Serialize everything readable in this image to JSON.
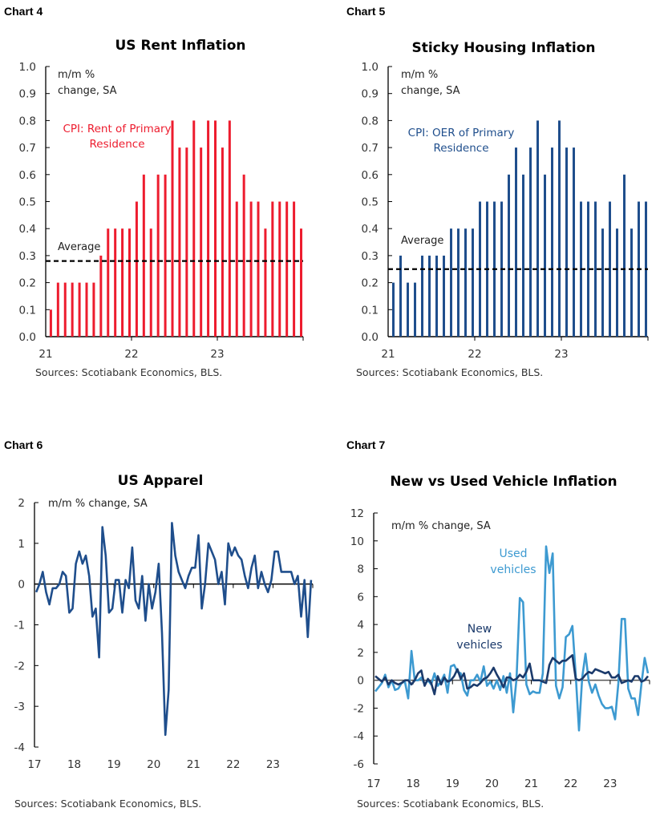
{
  "chart_data": [
    {
      "id": "chart4",
      "label": "Chart 4",
      "type": "bar",
      "title": "US Rent Inflation",
      "unit_note": "m/m %\nchange, SA",
      "series": [
        {
          "name": "CPI: Rent of Primary\nResidence",
          "color": "#ed1c2e",
          "values": [
            0.1,
            0.2,
            0.2,
            0.2,
            0.2,
            0.2,
            0.2,
            0.3,
            0.4,
            0.4,
            0.4,
            0.4,
            0.5,
            0.6,
            0.4,
            0.6,
            0.6,
            0.8,
            0.7,
            0.7,
            0.8,
            0.7,
            0.8,
            0.8,
            0.7,
            0.8,
            0.5,
            0.6,
            0.5,
            0.5,
            0.4,
            0.5,
            0.5,
            0.5,
            0.5,
            0.4
          ]
        }
      ],
      "x_start": "2021-01",
      "x_end": "2023-12",
      "average": {
        "label": "Average",
        "value": 0.28
      },
      "ylim": [
        0,
        1.0
      ],
      "yticks": [
        "0.0",
        "0.1",
        "0.2",
        "0.3",
        "0.4",
        "0.5",
        "0.6",
        "0.7",
        "0.8",
        "0.9",
        "1.0"
      ],
      "xticks": [
        "21",
        "22",
        "23"
      ],
      "source": "Sources: Scotiabank Economics, BLS."
    },
    {
      "id": "chart5",
      "label": "Chart 5",
      "type": "bar",
      "title": "Sticky Housing Inflation",
      "unit_note": "m/m %\nchange, SA",
      "series": [
        {
          "name": "CPI: OER of Primary\nResidence",
          "color": "#1f4e8c",
          "values": [
            0.2,
            0.3,
            0.2,
            0.2,
            0.3,
            0.3,
            0.3,
            0.3,
            0.4,
            0.4,
            0.4,
            0.4,
            0.5,
            0.5,
            0.5,
            0.5,
            0.6,
            0.7,
            0.6,
            0.7,
            0.8,
            0.6,
            0.7,
            0.8,
            0.7,
            0.7,
            0.5,
            0.5,
            0.5,
            0.4,
            0.5,
            0.4,
            0.6,
            0.4,
            0.5,
            0.5
          ]
        }
      ],
      "x_start": "2021-01",
      "x_end": "2023-12",
      "average": {
        "label": "Average",
        "value": 0.25
      },
      "ylim": [
        0,
        1.0
      ],
      "yticks": [
        "0.0",
        "0.1",
        "0.2",
        "0.3",
        "0.4",
        "0.5",
        "0.6",
        "0.7",
        "0.8",
        "0.9",
        "1.0"
      ],
      "xticks": [
        "21",
        "22",
        "23"
      ],
      "source": "Sources: Scotiabank Economics, BLS."
    },
    {
      "id": "chart6",
      "label": "Chart 6",
      "type": "line",
      "title": "US Apparel",
      "unit_note": "m/m % change, SA",
      "series": [
        {
          "color": "#1f4e8c",
          "values": [
            -0.2,
            0,
            0.3,
            -0.2,
            -0.5,
            -0.1,
            -0.1,
            0,
            0.3,
            0.2,
            -0.7,
            -0.6,
            0.5,
            0.8,
            0.5,
            0.7,
            0.2,
            -0.8,
            -0.6,
            -1.8,
            1.4,
            0.7,
            -0.7,
            -0.6,
            0.1,
            0.1,
            -0.7,
            0.1,
            -0.1,
            0.9,
            -0.4,
            -0.6,
            0.2,
            -0.9,
            0,
            -0.6,
            -0.2,
            0.5,
            -1.2,
            -3.7,
            -2.6,
            1.5,
            0.7,
            0.3,
            0.1,
            -0.1,
            0.2,
            0.4,
            0.4,
            1.2,
            -0.6,
            0,
            1.0,
            0.8,
            0.6,
            0,
            0.3,
            -0.5,
            1.0,
            0.7,
            0.9,
            0.7,
            0.6,
            0.2,
            -0.1,
            0.4,
            0.7,
            -0.1,
            0.3,
            0,
            -0.2,
            0.1,
            0.8,
            0.8,
            0.3,
            0.3,
            0.3,
            0.3,
            0,
            0.2,
            -0.8,
            0.1,
            -1.3,
            0.1
          ]
        }
      ],
      "x_start": "2017-01",
      "x_end": "2023-12",
      "ylim": [
        -4,
        2
      ],
      "yticks": [
        "-4",
        "-3",
        "-2",
        "-1",
        "0",
        "1",
        "2"
      ],
      "xticks": [
        "17",
        "18",
        "19",
        "20",
        "21",
        "22",
        "23"
      ],
      "source": "Sources: Scotiabank Economics, BLS."
    },
    {
      "id": "chart7",
      "label": "Chart 7",
      "type": "line",
      "title": "New vs Used Vehicle Inflation",
      "unit_note": "m/m % change, SA",
      "series": [
        {
          "name": "Used\nvehicles",
          "color": "#3d9ad1",
          "values": [
            -0.8,
            -0.5,
            -0.2,
            0.4,
            -0.5,
            0,
            -0.7,
            -0.6,
            -0.2,
            -0.1,
            -1.3,
            2.1,
            0,
            0,
            0.2,
            -0.3,
            0,
            -0.3,
            0.5,
            -0.4,
            -0.1,
            0.4,
            -0.9,
            1.0,
            1.1,
            0.6,
            0.5,
            -0.7,
            -1.1,
            0,
            0,
            0.4,
            -0.1,
            1.0,
            -0.4,
            -0.1,
            -0.6,
            0,
            -0.7,
            0.3,
            -0.9,
            0.5,
            -2.3,
            0.1,
            5.9,
            5.6,
            -0.3,
            -1.0,
            -0.8,
            -0.9,
            -0.9,
            0.5,
            9.6,
            7.7,
            9.1,
            -0.4,
            -1.3,
            -0.5,
            3.1,
            3.3,
            3.9,
            0.4,
            -3.6,
            0.2,
            1.9,
            -0.1,
            -0.9,
            -0.3,
            -1.1,
            -1.7,
            -2.0,
            -2.0,
            -1.9,
            -2.8,
            -0.2,
            4.4,
            4.4,
            -0.6,
            -1.3,
            -1.3,
            -2.5,
            -0.3,
            1.6,
            0.5
          ]
        },
        {
          "name": "New\nvehicles",
          "color": "#1b3a6b",
          "values": [
            0.3,
            0.1,
            -0.1,
            0.2,
            -0.3,
            0,
            -0.2,
            -0.3,
            -0.2,
            0,
            0,
            -0.3,
            0,
            0.5,
            0.7,
            -0.4,
            0.1,
            -0.2,
            -1.0,
            0.3,
            -0.3,
            0.2,
            -0.1,
            0,
            0.3,
            0.8,
            0.1,
            0.5,
            -0.6,
            -0.5,
            -0.3,
            -0.4,
            -0.2,
            0.1,
            0.2,
            0.5,
            0.9,
            0.4,
            0,
            -0.5,
            0.2,
            0.2,
            0,
            0.1,
            0.4,
            0.2,
            0.6,
            1.2,
            0,
            0,
            0,
            -0.1,
            -0.2,
            1.1,
            1.6,
            1.4,
            1.2,
            1.4,
            1.4,
            1.6,
            1.8,
            0.1,
            0,
            0.1,
            0.4,
            0.6,
            0.5,
            0.8,
            0.7,
            0.6,
            0.5,
            0.6,
            0.2,
            0.2,
            0.4,
            -0.2,
            -0.1,
            0,
            -0.1,
            0.3,
            0.3,
            -0.1,
            0,
            0.3
          ]
        }
      ],
      "x_start": "2017-01",
      "x_end": "2023-12",
      "ylim": [
        -6,
        12
      ],
      "yticks": [
        "-6",
        "-4",
        "-2",
        "0",
        "2",
        "4",
        "6",
        "8",
        "10",
        "12"
      ],
      "xticks": [
        "17",
        "18",
        "19",
        "20",
        "21",
        "22",
        "23"
      ],
      "source": "Sources: Scotiabank Economics, BLS."
    }
  ]
}
